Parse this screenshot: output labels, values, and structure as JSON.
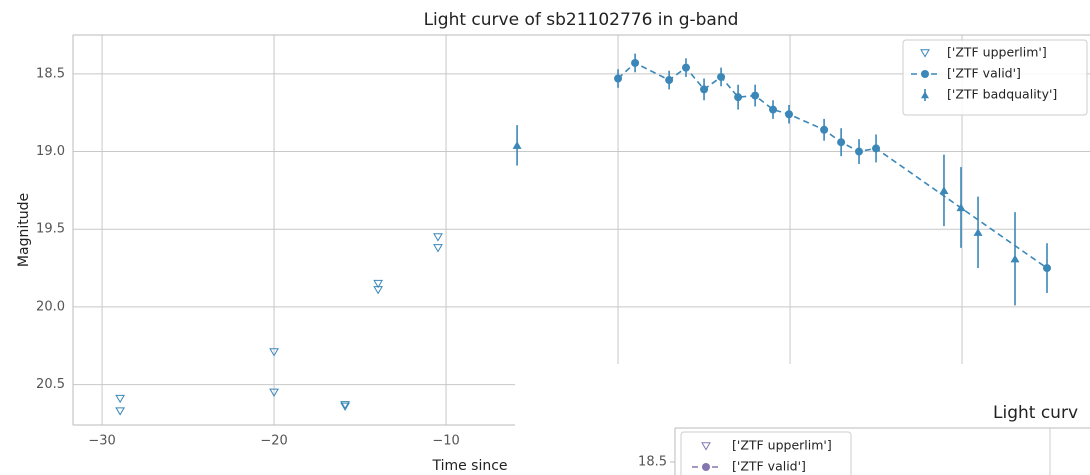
{
  "chart_data": [
    {
      "type": "line",
      "title": "Light curve of sb21102776 in g-band",
      "xlabel": "Time since",
      "ylabel": "Magnitude",
      "xlim": [
        -31.69,
        27.44
      ],
      "ylim": [
        18.25,
        20.76
      ],
      "y_inverted": true,
      "grid": true,
      "legend": "upper right",
      "xticks": [
        {
          "value": -30,
          "label": "−30"
        },
        {
          "value": -20,
          "label": "−20"
        },
        {
          "value": -10,
          "label": "−10"
        },
        0,
        10,
        20
      ],
      "yticks": [
        {
          "value": 18.5,
          "label": "18.5"
        },
        {
          "value": 19,
          "label": "19.0"
        },
        {
          "value": 19.5,
          "label": "19.5"
        },
        {
          "value": 20,
          "label": "20.0"
        },
        {
          "value": 20.5,
          "label": "20.5"
        }
      ],
      "series": [
        {
          "name": "['ZTF upperlim']",
          "color": "#3a87b8",
          "marker": "triangle-down-open",
          "x": [
            -28.95,
            -28.95,
            -20.0,
            -20.0,
            -15.87,
            -15.87,
            -13.95,
            -13.95,
            -10.47,
            -10.47
          ],
          "values": [
            20.59,
            20.67,
            20.29,
            20.55,
            20.63,
            20.64,
            19.85,
            19.89,
            19.55,
            19.62
          ]
        },
        {
          "name": "['ZTF valid']",
          "color": "#3a87b8",
          "marker": "circle",
          "line": "dashed",
          "x": [
            0.0,
            0.99,
            2.97,
            3.95,
            5.0,
            5.99,
            6.98,
            7.97,
            9.01,
            9.94,
            11.98,
            12.97,
            14.01,
            15.0,
            24.94
          ],
          "values": [
            18.53,
            18.43,
            18.54,
            18.46,
            18.6,
            18.52,
            18.65,
            18.64,
            18.73,
            18.76,
            18.86,
            18.94,
            19.0,
            18.98,
            19.75
          ],
          "errors": [
            0.06,
            0.06,
            0.06,
            0.06,
            0.07,
            0.06,
            0.08,
            0.07,
            0.06,
            0.06,
            0.07,
            0.09,
            0.08,
            0.09,
            0.16
          ]
        },
        {
          "name": "['ZTF badquality']",
          "color": "#3a87b8",
          "marker": "triangle-up",
          "x": [
            -5.87,
            18.95,
            19.94,
            20.93,
            23.08
          ],
          "values": [
            18.96,
            19.25,
            19.36,
            19.52,
            19.69
          ],
          "errors": [
            0.13,
            0.23,
            0.26,
            0.23,
            0.3
          ]
        }
      ]
    },
    {
      "type": "line",
      "title": "Light curv",
      "yticks": [
        {
          "value": 18.5,
          "label": "18.5"
        }
      ],
      "series": [
        {
          "name": "['ZTF upperlim']",
          "color": "#8576b0"
        },
        {
          "name": "['ZTF valid']",
          "color": "#8576b0"
        }
      ]
    }
  ]
}
